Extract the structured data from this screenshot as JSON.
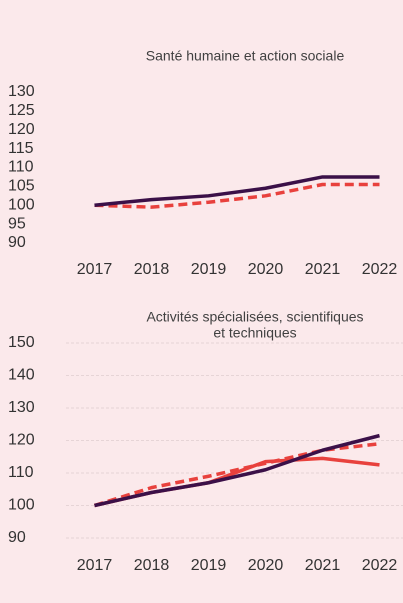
{
  "chart_data": [
    {
      "type": "line",
      "title": "Santé humaine et action sociale",
      "categories": [
        "2017",
        "2018",
        "2019",
        "2020",
        "2021",
        "2022"
      ],
      "series": [
        {
          "color": "#e8413d",
          "dashed": true,
          "values": [
            100,
            99.5,
            100.8,
            102.5,
            105.5,
            105.5
          ]
        },
        {
          "color": "#3b1048",
          "dashed": false,
          "values": [
            100,
            101.5,
            102.5,
            104.5,
            107.5,
            107.5
          ]
        }
      ],
      "ylim": [
        90,
        130
      ],
      "yticks": [
        90,
        95,
        100,
        105,
        110,
        115,
        120,
        125,
        130
      ],
      "grid": false
    },
    {
      "type": "line",
      "title": [
        "Activités spécialisées, scientifiques",
        "et techniques"
      ],
      "categories": [
        "2017",
        "2018",
        "2019",
        "2020",
        "2021",
        "2022"
      ],
      "series": [
        {
          "color": "#e8413d",
          "dashed": false,
          "values": [
            100,
            104,
            107,
            113.5,
            114.5,
            112.5
          ]
        },
        {
          "color": "#e8413d",
          "dashed": true,
          "values": [
            100,
            105.5,
            109,
            113,
            117,
            119
          ]
        },
        {
          "color": "#3b1048",
          "dashed": false,
          "values": [
            100,
            104,
            107,
            111,
            117,
            121.5
          ]
        }
      ],
      "ylim": [
        90,
        150
      ],
      "yticks": [
        90,
        100,
        110,
        120,
        130,
        140,
        150
      ],
      "grid": true
    }
  ]
}
